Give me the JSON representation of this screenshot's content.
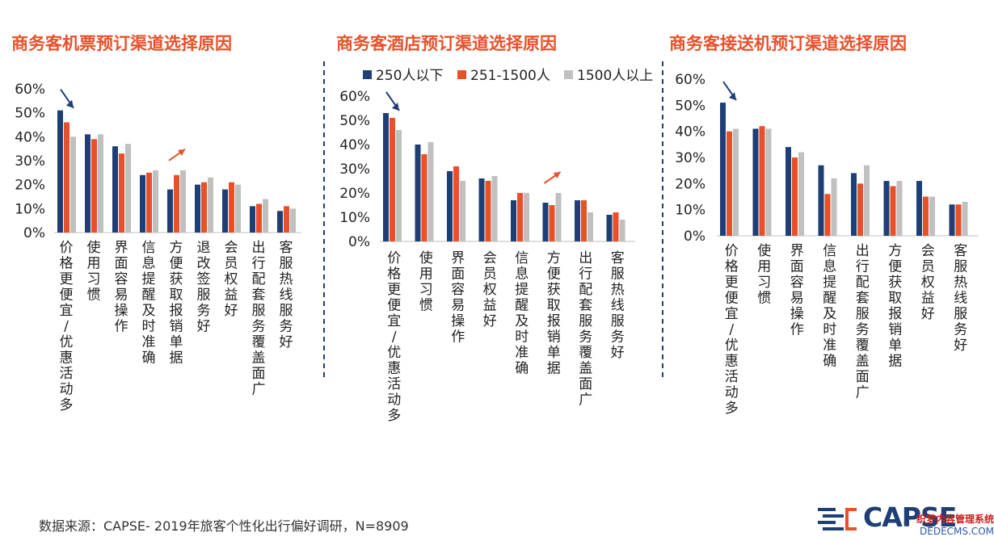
{
  "colors": {
    "title": "#e8502a",
    "divider": "#1e3f75",
    "axis": "#bfbfbf",
    "arrow_left": "#1e3f75",
    "arrow_right": "#e8502a",
    "logo": "#1e3f75",
    "logo_accent": "#e8502a"
  },
  "legend": {
    "items": [
      {
        "name": "250人以下",
        "color": "#1e3f75"
      },
      {
        "name": "251-1500人",
        "color": "#e8502a"
      },
      {
        "name": "1500人以上",
        "color": "#c0c0c0"
      }
    ]
  },
  "source": "数据来源：CAPSE- 2019年旅客个性化出行偏好调研，N=8909",
  "logo": {
    "text": "CAPSE",
    "icon": "capse-logo-icon"
  },
  "watermark": {
    "line1": "织梦内容管理系统",
    "line2": "DEDECMS.COM"
  },
  "chart_data": [
    {
      "type": "bar",
      "title": "商务客机票预订渠道选择原因",
      "categories": [
        "价格更便宜/优惠活动多",
        "使用习惯",
        "界面容易操作",
        "信息提醒及时准确",
        "方便获取报销单据",
        "退改签服务好",
        "会员权益好",
        "出行配套服务覆盖面广",
        "客服热线服务好"
      ],
      "series": [
        {
          "name": "250人以下",
          "values": [
            51,
            41,
            36,
            24,
            18,
            20,
            18,
            11,
            9
          ]
        },
        {
          "name": "251-1500人",
          "values": [
            46,
            39,
            33,
            25,
            24,
            21,
            21,
            12,
            11
          ]
        },
        {
          "name": "1500人以上",
          "values": [
            40,
            41,
            37,
            26,
            26,
            23,
            20,
            14,
            10
          ]
        }
      ],
      "yticks": [
        "0%",
        "10%",
        "20%",
        "30%",
        "40%",
        "50%",
        "60%"
      ],
      "ylim": [
        0,
        60
      ],
      "annotations": [
        {
          "type": "arrow",
          "color": "down",
          "category_index": 0
        },
        {
          "type": "arrow",
          "color": "up",
          "category_index": 4
        }
      ]
    },
    {
      "type": "bar",
      "title": "商务客酒店预订渠道选择原因",
      "categories": [
        "价格更便宜/优惠活动多",
        "使用习惯",
        "界面容易操作",
        "会员权益好",
        "信息提醒及时准确",
        "方便获取报销单据",
        "出行配套服务覆盖面广",
        "客服热线服务好"
      ],
      "series": [
        {
          "name": "250人以下",
          "values": [
            53,
            40,
            29,
            26,
            17,
            16,
            17,
            11
          ]
        },
        {
          "name": "251-1500人",
          "values": [
            51,
            36,
            31,
            25,
            20,
            15,
            17,
            12
          ]
        },
        {
          "name": "1500人以上",
          "values": [
            46,
            41,
            25,
            27,
            20,
            20,
            12,
            9
          ]
        }
      ],
      "yticks": [
        "0%",
        "10%",
        "20%",
        "30%",
        "40%",
        "50%",
        "60%"
      ],
      "ylim": [
        0,
        60
      ],
      "legend_position": "top",
      "annotations": [
        {
          "type": "arrow",
          "color": "down",
          "category_index": 0
        },
        {
          "type": "arrow",
          "color": "up",
          "category_index": 5
        }
      ]
    },
    {
      "type": "bar",
      "title": "商务客接送机预订渠道选择原因",
      "categories": [
        "价格更便宜/优惠活动多",
        "使用习惯",
        "界面容易操作",
        "信息提醒及时准确",
        "出行配套服务覆盖面广",
        "方便获取报销单据",
        "会员权益好",
        "客服热线服务好"
      ],
      "series": [
        {
          "name": "250人以下",
          "values": [
            51,
            41,
            34,
            27,
            24,
            21,
            21,
            12
          ]
        },
        {
          "name": "251-1500人",
          "values": [
            40,
            42,
            30,
            16,
            20,
            19,
            15,
            12
          ]
        },
        {
          "name": "1500人以上",
          "values": [
            41,
            41,
            32,
            22,
            27,
            21,
            15,
            13
          ]
        }
      ],
      "yticks": [
        "0%",
        "10%",
        "20%",
        "30%",
        "40%",
        "50%",
        "60%"
      ],
      "ylim": [
        0,
        60
      ],
      "annotations": [
        {
          "type": "arrow",
          "color": "down",
          "category_index": 0
        }
      ]
    }
  ]
}
